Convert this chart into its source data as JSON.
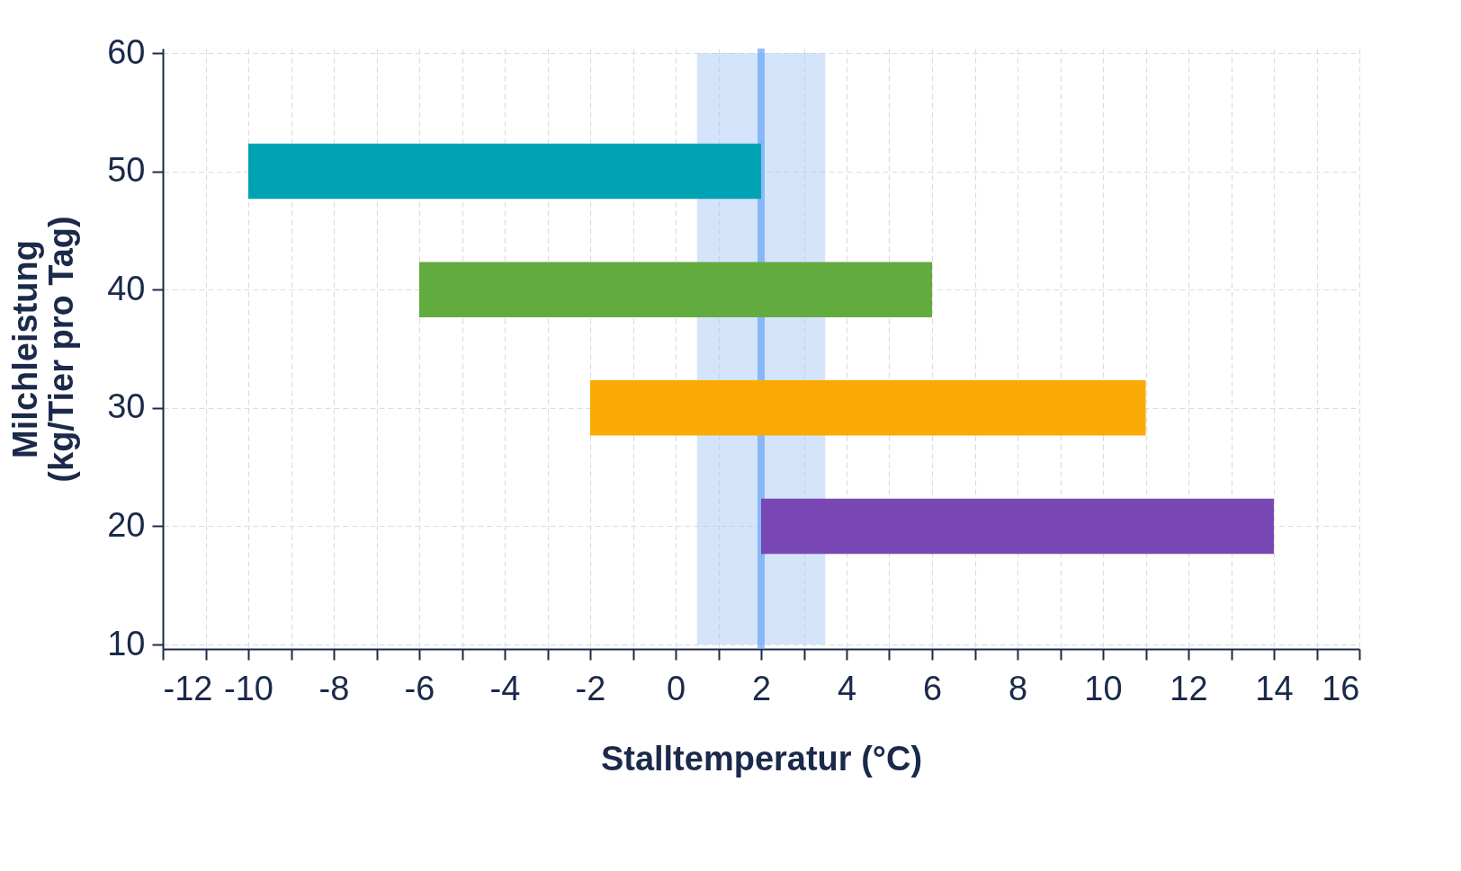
{
  "chart_data": {
    "type": "bar",
    "orientation": "horizontal",
    "xlabel": "Stalltemperatur (°C)",
    "ylabel": "Milchleistung\n(kg/Tier pro Tag)",
    "x": [
      50,
      40,
      30,
      20
    ],
    "base": [
      -10,
      -6,
      -2,
      2
    ],
    "values": [
      12,
      12,
      13,
      12
    ],
    "colors": [
      "#00a3b4",
      "#62ab3f",
      "#fbaa05",
      "#7a48b5"
    ],
    "xlim": [
      -12,
      16
    ],
    "xticks": [
      -12,
      {
        "value": -11,
        "label": null
      },
      -10,
      {
        "value": -9,
        "label": null
      },
      -8,
      {
        "value": -7,
        "label": null
      },
      -6,
      {
        "value": -5,
        "label": null
      },
      -4,
      {
        "value": -3,
        "label": null
      },
      -2,
      {
        "value": -1,
        "label": null
      },
      0,
      {
        "value": 1,
        "label": null
      },
      2,
      {
        "value": 3,
        "label": null
      },
      4,
      {
        "value": 5,
        "label": null
      },
      6,
      {
        "value": 7,
        "label": null
      },
      8,
      {
        "value": 9,
        "label": null
      },
      10,
      {
        "value": 11,
        "label": null
      },
      12,
      {
        "value": 13,
        "label": null
      },
      14,
      {
        "value": 15,
        "label": null
      },
      16
    ],
    "ylim": [
      10,
      60
    ],
    "yticks": [
      10,
      20,
      30,
      40,
      50,
      60
    ],
    "grid": true,
    "bands": [
      {
        "axis": "x",
        "from": 0.5,
        "to": 3.5,
        "color": "#a9cbf7"
      }
    ],
    "ref_lines": [
      {
        "axis": "x",
        "value": 2,
        "color": "#6aa5f3"
      }
    ]
  }
}
